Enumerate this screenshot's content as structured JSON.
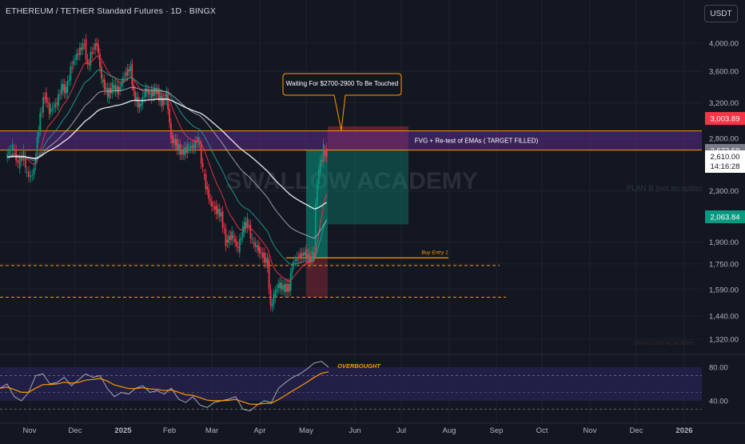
{
  "header": {
    "title": "ETHEREUM / TETHER Standard Futures · 1D · BINGX",
    "currency_button": "USDT"
  },
  "chart_data": [
    {
      "type": "candlestick",
      "symbol": "ETHEREUM / TETHER Standard Futures",
      "interval": "1D",
      "exchange": "BINGX",
      "price_axis": {
        "scale": "log",
        "ticks": [
          "4,000.00",
          "3,600.00",
          "3,200.00",
          "2,800.00",
          "2,300.00",
          "1,900.00",
          "1,750.00",
          "1,590.00",
          "1,440.00",
          "1,320.00"
        ]
      },
      "time_axis": {
        "labels": [
          "Nov",
          "Dec",
          "2025",
          "Feb",
          "Mar",
          "Apr",
          "May",
          "Jun",
          "Jul",
          "Aug",
          "Sep",
          "Oct",
          "Nov",
          "Dec",
          "2026"
        ]
      },
      "close_series": [
        {
          "date": "Oct 16",
          "close": 2610
        },
        {
          "date": "Oct 21",
          "close": 2720
        },
        {
          "date": "Oct 25",
          "close": 2540
        },
        {
          "date": "Oct 29",
          "close": 2650
        },
        {
          "date": "Oct 30",
          "close": 2480
        },
        {
          "date": "Nov 3",
          "close": 2420
        },
        {
          "date": "Nov 5",
          "close": 2500
        },
        {
          "date": "Nov 9",
          "close": 3050
        },
        {
          "date": "Nov 12",
          "close": 3300
        },
        {
          "date": "Nov 15",
          "close": 3100
        },
        {
          "date": "Nov 20",
          "close": 3200
        },
        {
          "date": "Nov 23",
          "close": 3400
        },
        {
          "date": "Nov 26",
          "close": 3350
        },
        {
          "date": "Nov 30",
          "close": 3700
        },
        {
          "date": "Dec 5",
          "close": 3900
        },
        {
          "date": "Dec 8",
          "close": 4000
        },
        {
          "date": "Dec 10",
          "close": 3650
        },
        {
          "date": "Dec 13",
          "close": 3900
        },
        {
          "date": "Dec 16",
          "close": 4000
        },
        {
          "date": "Dec 19",
          "close": 3500
        },
        {
          "date": "Dec 23",
          "close": 3300
        },
        {
          "date": "Dec 26",
          "close": 3400
        },
        {
          "date": "Dec 30",
          "close": 3350
        },
        {
          "date": "Jan 3",
          "close": 3550
        },
        {
          "date": "Jan 7",
          "close": 3650
        },
        {
          "date": "Jan 9",
          "close": 3300
        },
        {
          "date": "Jan 13",
          "close": 3150
        },
        {
          "date": "Jan 17",
          "close": 3350
        },
        {
          "date": "Jan 20",
          "close": 3300
        },
        {
          "date": "Jan 24",
          "close": 3350
        },
        {
          "date": "Jan 28",
          "close": 3200
        },
        {
          "date": "Jan 31",
          "close": 3300
        },
        {
          "date": "Feb 3",
          "close": 2800
        },
        {
          "date": "Feb 6",
          "close": 2750
        },
        {
          "date": "Feb 10",
          "close": 2650
        },
        {
          "date": "Feb 14",
          "close": 2700
        },
        {
          "date": "Feb 18",
          "close": 2720
        },
        {
          "date": "Feb 21",
          "close": 2800
        },
        {
          "date": "Feb 24",
          "close": 2480
        },
        {
          "date": "Feb 26",
          "close": 2350
        },
        {
          "date": "Mar 1",
          "close": 2200
        },
        {
          "date": "Mar 4",
          "close": 2150
        },
        {
          "date": "Mar 8",
          "close": 2100
        },
        {
          "date": "Mar 11",
          "close": 1900
        },
        {
          "date": "Mar 15",
          "close": 1950
        },
        {
          "date": "Mar 19",
          "close": 1850
        },
        {
          "date": "Mar 22",
          "close": 2000
        },
        {
          "date": "Mar 25",
          "close": 2050
        },
        {
          "date": "Mar 28",
          "close": 1900
        },
        {
          "date": "Apr 1",
          "close": 1850
        },
        {
          "date": "Apr 4",
          "close": 1800
        },
        {
          "date": "Apr 7",
          "close": 1750
        },
        {
          "date": "Apr 9",
          "close": 1480
        },
        {
          "date": "Apr 11",
          "close": 1550
        },
        {
          "date": "Apr 14",
          "close": 1620
        },
        {
          "date": "Apr 17",
          "close": 1600
        },
        {
          "date": "Apr 21",
          "close": 1600
        },
        {
          "date": "Apr 23",
          "close": 1750
        },
        {
          "date": "Apr 27",
          "close": 1800
        },
        {
          "date": "May 1",
          "close": 1820
        },
        {
          "date": "May 4",
          "close": 1780
        },
        {
          "date": "May 7",
          "close": 1820
        },
        {
          "date": "May 8",
          "close": 2200
        },
        {
          "date": "May 10",
          "close": 2500
        },
        {
          "date": "May 12",
          "close": 2600
        },
        {
          "date": "May 13",
          "close": 2700
        },
        {
          "date": "May 14",
          "close": 2610
        }
      ],
      "ema_lines": [
        {
          "name": "EMA (fast, red)",
          "color": "#f23645"
        },
        {
          "name": "EMA (mid, teal)",
          "color": "#26a69a"
        },
        {
          "name": "EMA (slow, light gray)",
          "color": "#b2b5be"
        },
        {
          "name": "EMA (longest, white)",
          "color": "#ffffff"
        }
      ],
      "fvg_zone": {
        "low": 2680,
        "high": 2880,
        "label": "FVG + Re-test of EMAs ( TARGET FILLED)"
      },
      "buy_entry": {
        "price": 1790,
        "label": "Buy Entry 1"
      },
      "horizontal_levels": [
        1740,
        1545
      ],
      "position": {
        "entry": 1790,
        "target": 2680,
        "stop_top": 2930,
        "stop_bottom": 1545
      },
      "callout": "Waiting For $2700-2900 To Be Touched",
      "price_labels": {
        "stop": {
          "text": "3,003.89",
          "color": "#f23645"
        },
        "zone_top": {
          "text": "2,672.59",
          "color": "#787b86"
        },
        "last": {
          "text": "2,610.00",
          "countdown": "14:16:28",
          "color": "#ffffff"
        },
        "target": {
          "text": "2,063.84",
          "color": "#089981"
        }
      },
      "watermark": "SWALLOW ACADEMY",
      "notes": [
        "PLAN B (not an option",
        "SWALLOW ACADEMY"
      ]
    },
    {
      "type": "line",
      "name": "RSI",
      "ticks": [
        "80.00",
        "40.00"
      ],
      "overbought_label": "OVERBOUGHT",
      "rsi_values": [
        55,
        60,
        45,
        40,
        50,
        70,
        72,
        60,
        62,
        68,
        58,
        65,
        72,
        68,
        70,
        55,
        45,
        50,
        48,
        55,
        58,
        50,
        52,
        48,
        55,
        42,
        38,
        45,
        35,
        32,
        38,
        40,
        42,
        45,
        30,
        28,
        35,
        40,
        38,
        55,
        62,
        68,
        72,
        78,
        85,
        87,
        80
      ]
    }
  ],
  "colors": {
    "background": "#131722",
    "grid": "#1e222d",
    "up": "#089981",
    "down": "#f23645",
    "orange": "#ff9800",
    "fvg_purple": "#5b2a86",
    "target_green": "#089981",
    "stop_red": "#f23645"
  }
}
